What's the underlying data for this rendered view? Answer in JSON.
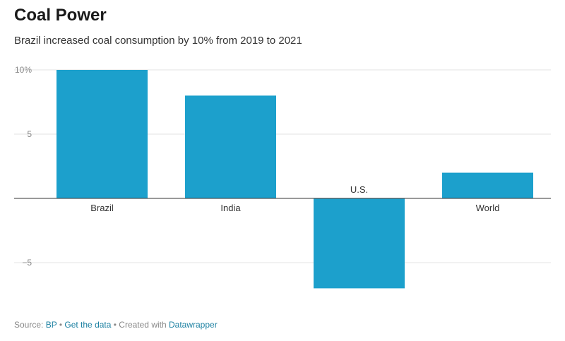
{
  "chart_data": {
    "type": "bar",
    "title": "Coal Power",
    "subtitle": "Brazil increased coal consumption by 10% from 2019 to 2021",
    "categories": [
      "Brazil",
      "India",
      "U.S.",
      "World"
    ],
    "values": [
      10,
      8,
      -7,
      2
    ],
    "units": "%",
    "ylim": [
      -7,
      10
    ],
    "yticks": [
      {
        "value": 10,
        "label": "10%"
      },
      {
        "value": 5,
        "label": "5"
      },
      {
        "value": -5,
        "label": "−5"
      }
    ],
    "grid": true,
    "bar_color": "#1ca0cc"
  },
  "footer": {
    "source_prefix": "Source: ",
    "source_link": "BP",
    "separator1": " • ",
    "get_data": "Get the data",
    "separator2": " • Created with ",
    "tool": "Datawrapper"
  }
}
